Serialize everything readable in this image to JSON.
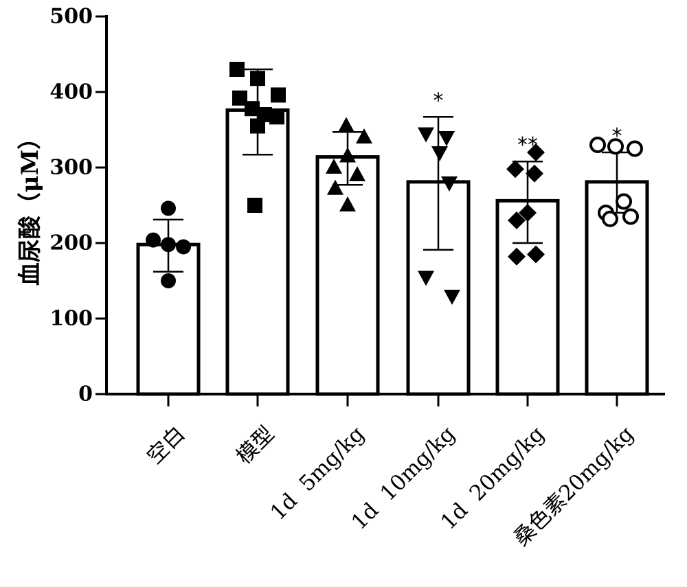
{
  "chart_data": {
    "type": "bar",
    "title": "",
    "xlabel": "",
    "ylabel": "血尿酸（μM）",
    "ylim": [
      0,
      500
    ],
    "yticks": [
      0,
      100,
      200,
      300,
      400,
      500
    ],
    "grid": false,
    "categories": [
      "空白",
      "模型",
      "1d  5mg/kg",
      "1d  10mg/kg",
      "1d  20mg/kg",
      "桑色素20mg/kg"
    ],
    "values": [
      198,
      376,
      314,
      281,
      256,
      281
    ],
    "error_high": [
      231,
      430,
      347,
      367,
      308,
      320
    ],
    "error_low": [
      162,
      317,
      277,
      191,
      200,
      240
    ],
    "significance": [
      "",
      "",
      "",
      "*",
      "**",
      "*"
    ],
    "marker_shapes": [
      "circle",
      "square",
      "triangle-up",
      "triangle-down",
      "diamond",
      "open-circle"
    ],
    "points": [
      [
        246,
        204,
        198,
        195,
        150
      ],
      [
        430,
        418,
        396,
        392,
        378,
        370,
        367,
        355,
        250
      ],
      [
        355,
        340,
        315,
        300,
        290,
        272,
        250
      ],
      [
        345,
        340,
        320,
        280,
        155,
        130
      ],
      [
        320,
        298,
        292,
        240,
        230,
        185,
        182
      ],
      [
        330,
        328,
        325,
        255,
        240,
        235,
        232
      ]
    ]
  }
}
